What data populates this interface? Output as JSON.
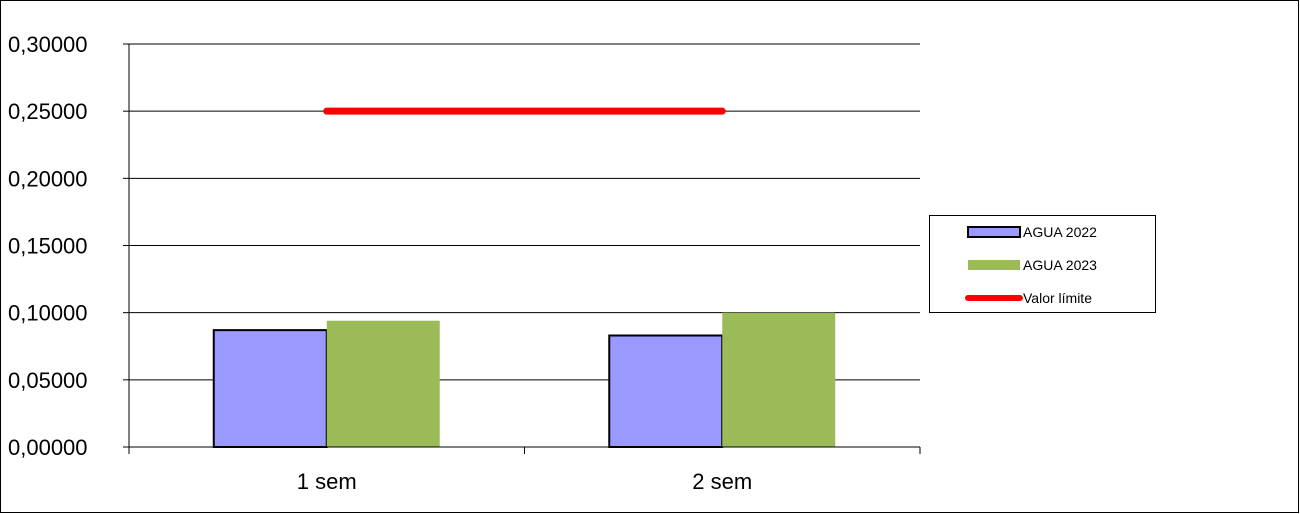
{
  "chart_data": {
    "type": "bar",
    "categories": [
      "1 sem",
      "2 sem"
    ],
    "series": [
      {
        "name": "AGUA 2022",
        "type": "bar",
        "values": [
          0.087,
          0.083
        ],
        "color": "#9999ff",
        "outline": "#000000"
      },
      {
        "name": "AGUA 2023",
        "type": "bar",
        "values": [
          0.094,
          0.1
        ],
        "color": "#9bbb59"
      },
      {
        "name": "Valor límite",
        "type": "line",
        "values": [
          0.25,
          0.25
        ],
        "color": "#ff0000"
      }
    ],
    "yticks": [
      "0,00000",
      "0,05000",
      "0,10000",
      "0,15000",
      "0,20000",
      "0,25000",
      "0,30000"
    ],
    "ylim": [
      0,
      0.3
    ],
    "grid": true,
    "legend_position": "right"
  }
}
